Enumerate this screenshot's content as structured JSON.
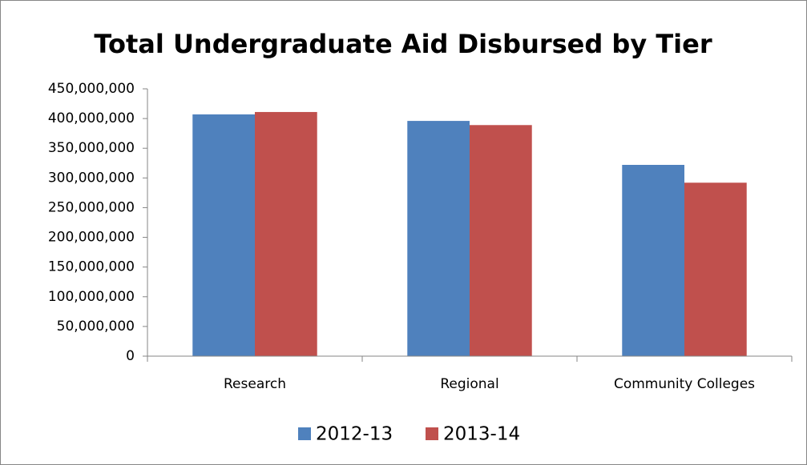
{
  "chart_data": {
    "type": "bar",
    "title": "Total Undergraduate Aid Disbursed by Tier",
    "categories": [
      "Research",
      "Regional",
      "Community Colleges"
    ],
    "series": [
      {
        "name": "2012-13",
        "color": "#4f81bd",
        "values": [
          407000000,
          396000000,
          322000000
        ]
      },
      {
        "name": "2013-14",
        "color": "#c0504d",
        "values": [
          411000000,
          389000000,
          292000000
        ]
      }
    ],
    "ylim": [
      0,
      450000000
    ],
    "yticks": [
      0,
      {
        "value": 50000000,
        "label": "50,000,000"
      },
      {
        "value": 100000000,
        "label": "100,000,000"
      },
      {
        "value": 150000000,
        "label": "150,000,000"
      },
      {
        "value": 200000000,
        "label": "200,000,000"
      },
      {
        "value": 250000000,
        "label": "250,000,000"
      },
      {
        "value": 300000000,
        "label": "300,000,000"
      },
      {
        "value": 350000000,
        "label": "350,000,000"
      },
      {
        "value": 400000000,
        "label": "400,000,000"
      },
      {
        "value": 450000000,
        "label": "450,000,000"
      }
    ],
    "grid": false,
    "legend": "bottom"
  }
}
